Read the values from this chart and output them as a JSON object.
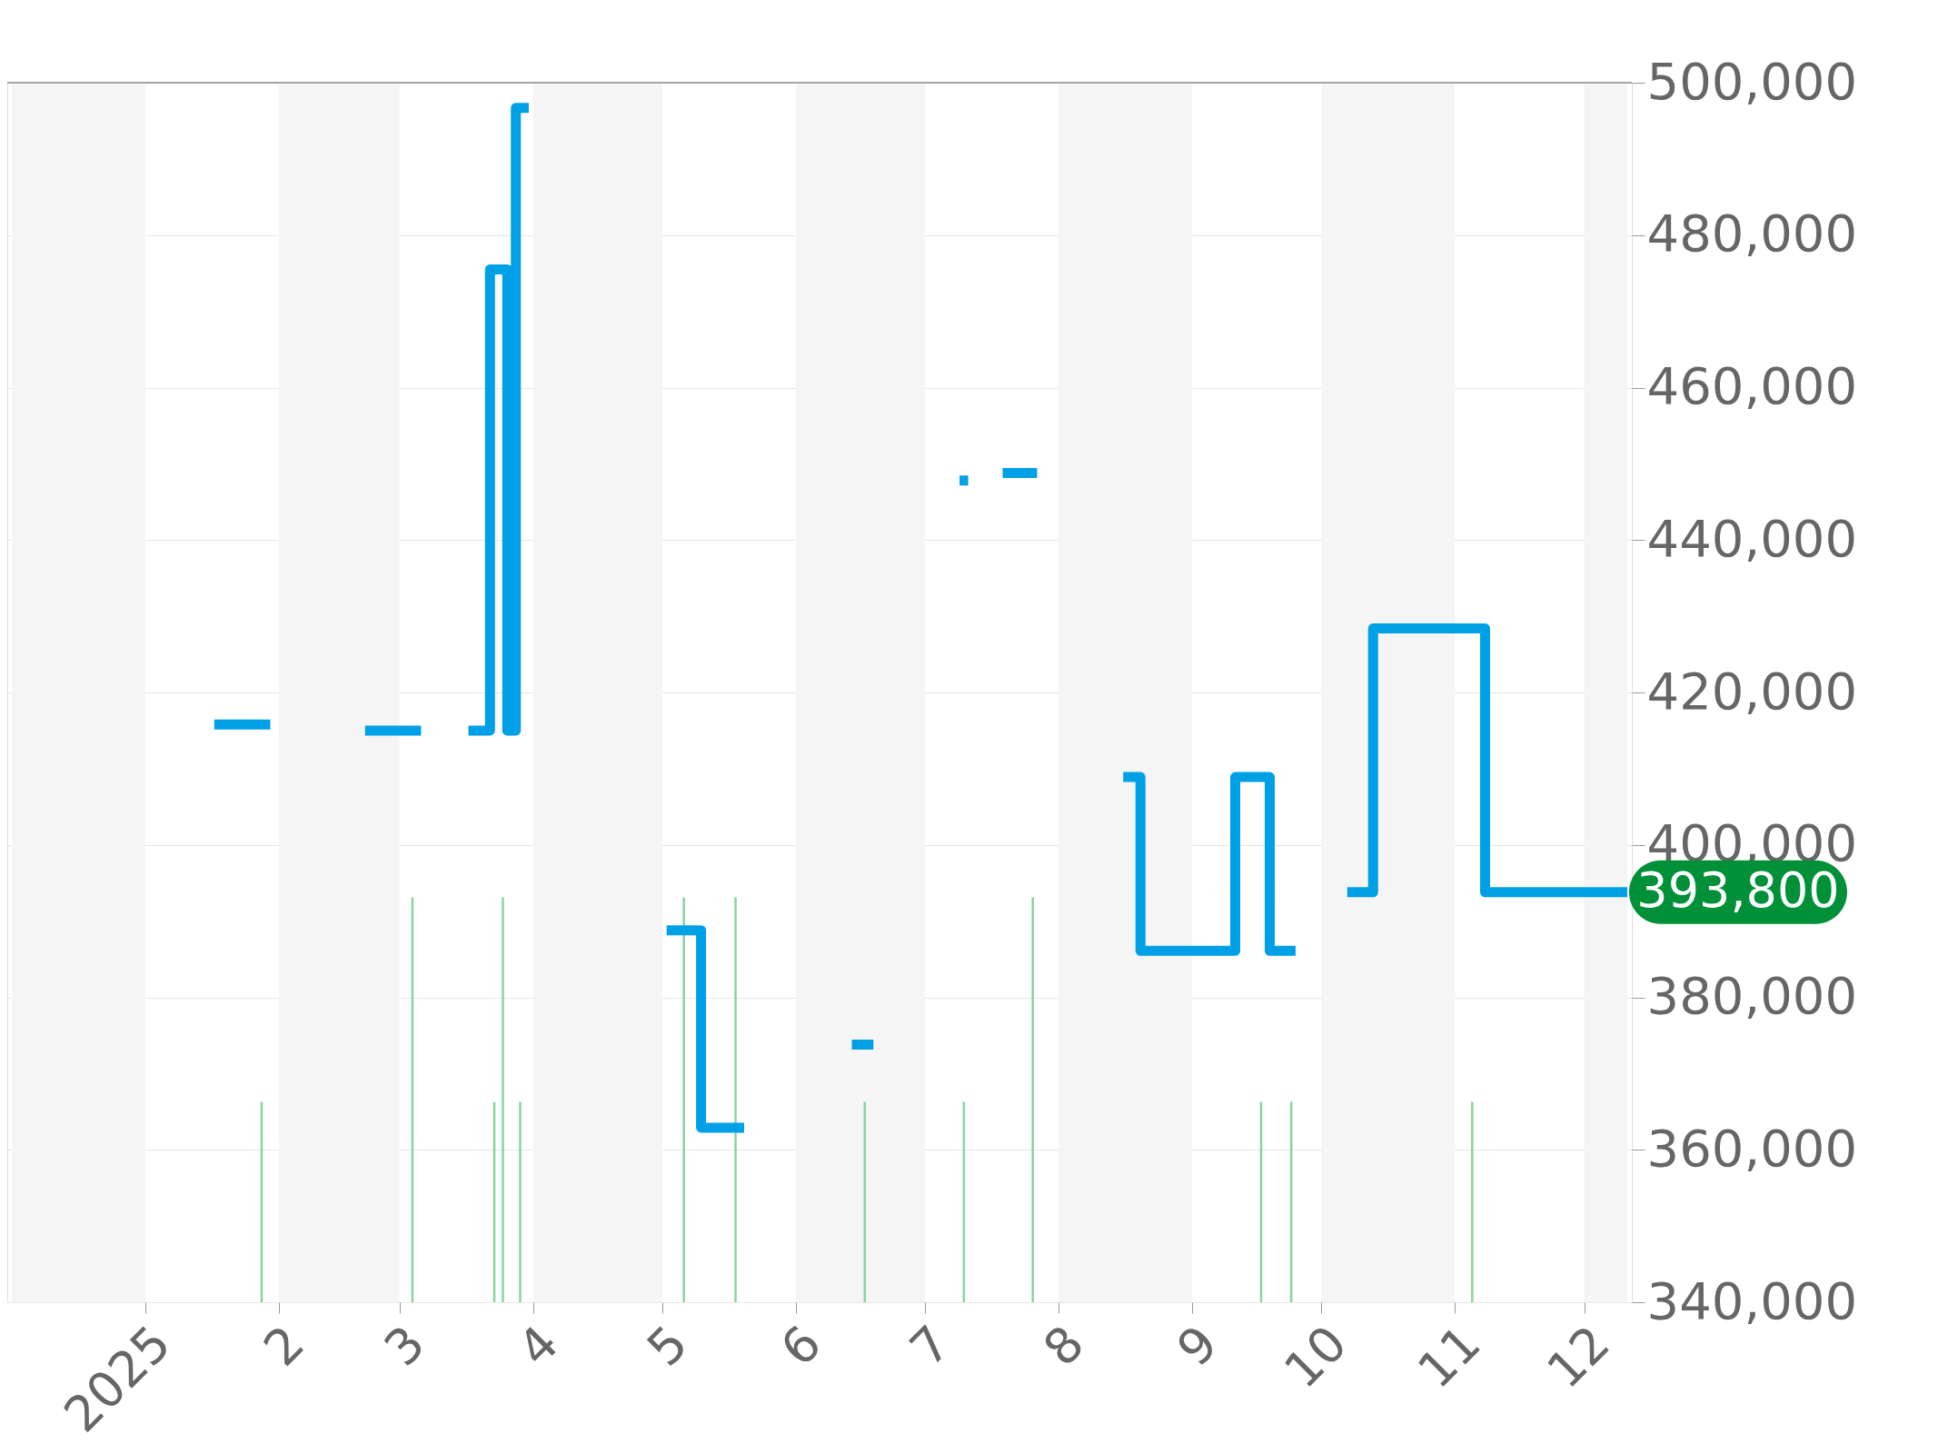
{
  "chart_data": {
    "type": "step",
    "xlim": [
      "2024-12-01",
      "2025-12-11"
    ],
    "xticks": [
      {
        "value": "2025-01-01",
        "label": "2025"
      },
      {
        "value": "2025-02-01",
        "label": "2"
      },
      {
        "value": "2025-03-01",
        "label": "3"
      },
      {
        "value": "2025-04-01",
        "label": "4"
      },
      {
        "value": "2025-05-01",
        "label": "5"
      },
      {
        "value": "2025-06-01",
        "label": "6"
      },
      {
        "value": "2025-07-01",
        "label": "7"
      },
      {
        "value": "2025-08-01",
        "label": "8"
      },
      {
        "value": "2025-09-01",
        "label": "9"
      },
      {
        "value": "2025-10-01",
        "label": "10"
      },
      {
        "value": "2025-11-01",
        "label": "11"
      },
      {
        "value": "2025-12-01",
        "label": "12"
      }
    ],
    "ylim": [
      340000,
      500000
    ],
    "yticks": [
      {
        "value": 340000,
        "label": "340,000"
      },
      {
        "value": 360000,
        "label": "360,000"
      },
      {
        "value": 380000,
        "label": "380,000"
      },
      {
        "value": 400000,
        "label": "400,000"
      },
      {
        "value": 420000,
        "label": "420,000"
      },
      {
        "value": 440000,
        "label": "440,000"
      },
      {
        "value": 460000,
        "label": "460,000"
      },
      {
        "value": 480000,
        "label": "480,000"
      },
      {
        "value": 500000,
        "label": "500,000"
      }
    ],
    "grid": "y",
    "bands": [
      {
        "axis": "x",
        "from": "2024-12-01",
        "to": "2025-01-01",
        "color": "#f5f5f5"
      },
      {
        "axis": "x",
        "from": "2025-02-01",
        "to": "2025-03-01",
        "color": "#f5f5f5"
      },
      {
        "axis": "x",
        "from": "2025-04-01",
        "to": "2025-05-01",
        "color": "#f5f5f5"
      },
      {
        "axis": "x",
        "from": "2025-06-01",
        "to": "2025-07-01",
        "color": "#f5f5f5"
      },
      {
        "axis": "x",
        "from": "2025-08-01",
        "to": "2025-09-01",
        "color": "#f5f5f5"
      },
      {
        "axis": "x",
        "from": "2025-10-01",
        "to": "2025-11-01",
        "color": "#f5f5f5"
      },
      {
        "axis": "x",
        "from": "2025-12-01",
        "to": "2025-12-11",
        "color": "#f5f5f5"
      }
    ],
    "series": [
      {
        "type": "bar",
        "color": "#88d598",
        "x": [
          "2025-01-28",
          "2025-03-04",
          "2025-03-23",
          "2025-03-25",
          "2025-03-29",
          "2025-05-06",
          "2025-05-18",
          "2025-06-17",
          "2025-07-10",
          "2025-07-26",
          "2025-09-17",
          "2025-09-24",
          "2025-11-05"
        ],
        "values": [
          366300,
          393100,
          366300,
          393100,
          366300,
          393100,
          393100,
          366300,
          366300,
          393100,
          366300,
          366300,
          366300
        ]
      },
      {
        "color": "#00a0e6",
        "x": [
          "2025-01-17",
          "2025-01-30",
          "2025-02-10",
          "2025-02-21",
          "2025-03-06",
          "2025-03-12",
          "2025-03-17",
          "2025-03-22",
          "2025-03-26",
          "2025-03-28",
          "2025-03-31",
          "2025-04-15",
          "2025-05-02",
          "2025-05-10",
          "2025-05-20",
          "2025-06-01",
          "2025-06-14",
          "2025-06-19",
          "2025-06-30",
          "2025-07-09",
          "2025-07-11",
          "2025-07-15",
          "2025-07-19",
          "2025-07-27",
          "2025-08-05",
          "2025-08-16",
          "2025-08-20",
          "2025-09-11",
          "2025-09-19",
          "2025-09-25",
          "2025-10-01",
          "2025-10-07",
          "2025-10-13",
          "2025-11-08",
          "2025-12-11"
        ],
        "values": [
          415800,
          415800,
          null,
          415000,
          415000,
          null,
          415000,
          475500,
          415000,
          496700,
          496700,
          null,
          388800,
          362900,
          362900,
          null,
          373800,
          373800,
          null,
          447800,
          447800,
          null,
          448800,
          448800,
          null,
          408900,
          386100,
          408900,
          386100,
          386100,
          null,
          393800,
          428400,
          393800,
          393800
        ]
      }
    ],
    "annotations": [
      {
        "text": "393,800",
        "x": "2025-12-11",
        "y": 393800
      }
    ]
  }
}
